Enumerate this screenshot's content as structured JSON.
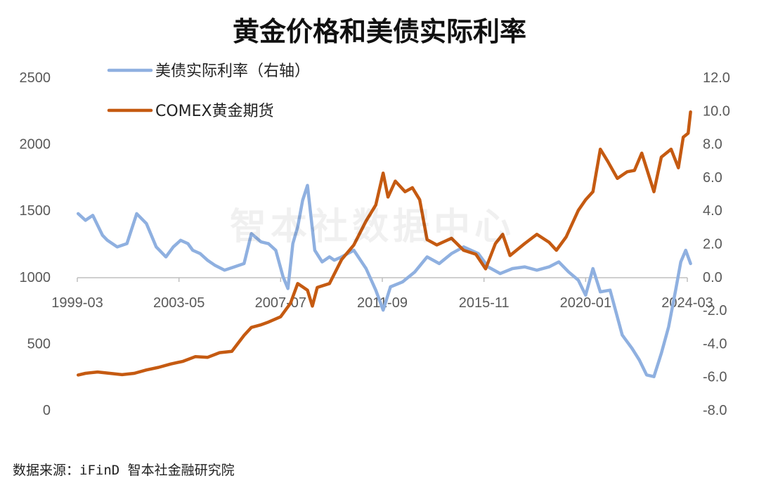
{
  "watermark": "智本社数据中心",
  "source": "数据来源：iFinD 智本社金融研究院",
  "chart_data": {
    "type": "line",
    "title": "黄金价格和美债实际利率",
    "x_ticks": [
      "1999-03",
      "2003-05",
      "2007-07",
      "2011-09",
      "2015-11",
      "2020-01",
      "2024-03"
    ],
    "x_range": [
      "1999-03",
      "2024-03"
    ],
    "y_left": {
      "ticks": [
        "0",
        "500",
        "1000",
        "1500",
        "2000",
        "2500"
      ],
      "range": [
        0,
        2500
      ]
    },
    "y_right": {
      "ticks": [
        "-8.0",
        "-6.0",
        "-4.0",
        "-2.0",
        "0.0",
        "2.0",
        "4.0",
        "6.0",
        "8.0",
        "10.0",
        "12.0"
      ],
      "range": [
        -8,
        12
      ]
    },
    "legend_position": "top-left",
    "grid": false,
    "series": [
      {
        "name": "美债实际利率（右轴）",
        "axis": "right",
        "color": "#8fb0e0",
        "x": [
          1999.2,
          1999.5,
          1999.8,
          2000.2,
          2000.4,
          2000.6,
          2000.8,
          2001.2,
          2001.6,
          2002.0,
          2002.4,
          2002.8,
          2003.1,
          2003.4,
          2003.7,
          2003.9,
          2004.2,
          2004.5,
          2004.8,
          2005.2,
          2005.6,
          2006.0,
          2006.3,
          2006.7,
          2007.0,
          2007.3,
          2007.6,
          2007.8,
          2008.0,
          2008.2,
          2008.4,
          2008.6,
          2008.9,
          2009.2,
          2009.5,
          2009.7,
          2010.0,
          2010.5,
          2011.0,
          2011.4,
          2011.7,
          2012.0,
          2012.5,
          2013.0,
          2013.5,
          2014.0,
          2014.5,
          2015.0,
          2015.6,
          2016.0,
          2016.5,
          2017.0,
          2017.5,
          2018.0,
          2018.5,
          2018.9,
          2019.3,
          2019.7,
          2020.0,
          2020.3,
          2020.6,
          2021.0,
          2021.5,
          2021.9,
          2022.2,
          2022.5,
          2022.8,
          2023.1,
          2023.4,
          2023.7,
          2023.9,
          2024.1,
          2024.3
        ],
        "values": [
          3.8,
          3.4,
          3.7,
          2.5,
          2.2,
          2.0,
          1.8,
          2.0,
          3.8,
          3.2,
          1.8,
          1.2,
          1.8,
          2.2,
          2.0,
          1.6,
          1.4,
          1.0,
          0.7,
          0.4,
          0.6,
          0.8,
          2.6,
          2.1,
          2.0,
          1.6,
          0.0,
          -0.7,
          2.0,
          3.0,
          4.6,
          5.5,
          1.6,
          0.9,
          1.2,
          1.0,
          1.2,
          1.6,
          0.5,
          -0.8,
          -2.0,
          -0.6,
          -0.3,
          0.3,
          1.2,
          0.8,
          1.4,
          1.8,
          1.4,
          0.6,
          0.2,
          0.5,
          0.6,
          0.4,
          0.6,
          0.9,
          0.3,
          -0.2,
          -1.1,
          0.5,
          -0.9,
          -0.8,
          -3.5,
          -4.3,
          -5.0,
          -5.9,
          -6.0,
          -4.6,
          -3.0,
          -0.7,
          0.9,
          1.6,
          0.8
        ]
      },
      {
        "name": "COMEX黄金期货",
        "axis": "left",
        "color": "#c55a11",
        "x": [
          1999.2,
          1999.5,
          2000.0,
          2000.5,
          2001.0,
          2001.5,
          2002.0,
          2002.5,
          2003.0,
          2003.5,
          2004.0,
          2004.5,
          2005.0,
          2005.5,
          2006.0,
          2006.3,
          2006.7,
          2007.0,
          2007.5,
          2007.9,
          2008.2,
          2008.6,
          2008.8,
          2009.0,
          2009.5,
          2010.0,
          2010.5,
          2011.0,
          2011.4,
          2011.7,
          2011.9,
          2012.2,
          2012.6,
          2012.9,
          2013.2,
          2013.5,
          2013.9,
          2014.5,
          2015.0,
          2015.5,
          2015.9,
          2016.3,
          2016.6,
          2016.9,
          2017.5,
          2018.0,
          2018.5,
          2018.8,
          2019.2,
          2019.7,
          2020.0,
          2020.3,
          2020.6,
          2020.9,
          2021.3,
          2021.7,
          2022.0,
          2022.3,
          2022.8,
          2023.1,
          2023.5,
          2023.8,
          2024.0,
          2024.2,
          2024.3
        ],
        "values": [
          262,
          275,
          285,
          275,
          265,
          275,
          300,
          320,
          345,
          365,
          400,
          395,
          430,
          440,
          560,
          620,
          640,
          660,
          700,
          800,
          950,
          900,
          780,
          920,
          950,
          1130,
          1240,
          1420,
          1540,
          1780,
          1600,
          1720,
          1640,
          1670,
          1580,
          1280,
          1240,
          1290,
          1200,
          1170,
          1060,
          1250,
          1320,
          1160,
          1250,
          1320,
          1260,
          1200,
          1300,
          1500,
          1580,
          1640,
          1960,
          1870,
          1740,
          1790,
          1800,
          1930,
          1640,
          1900,
          1960,
          1820,
          2050,
          2080,
          2240
        ]
      }
    ]
  }
}
